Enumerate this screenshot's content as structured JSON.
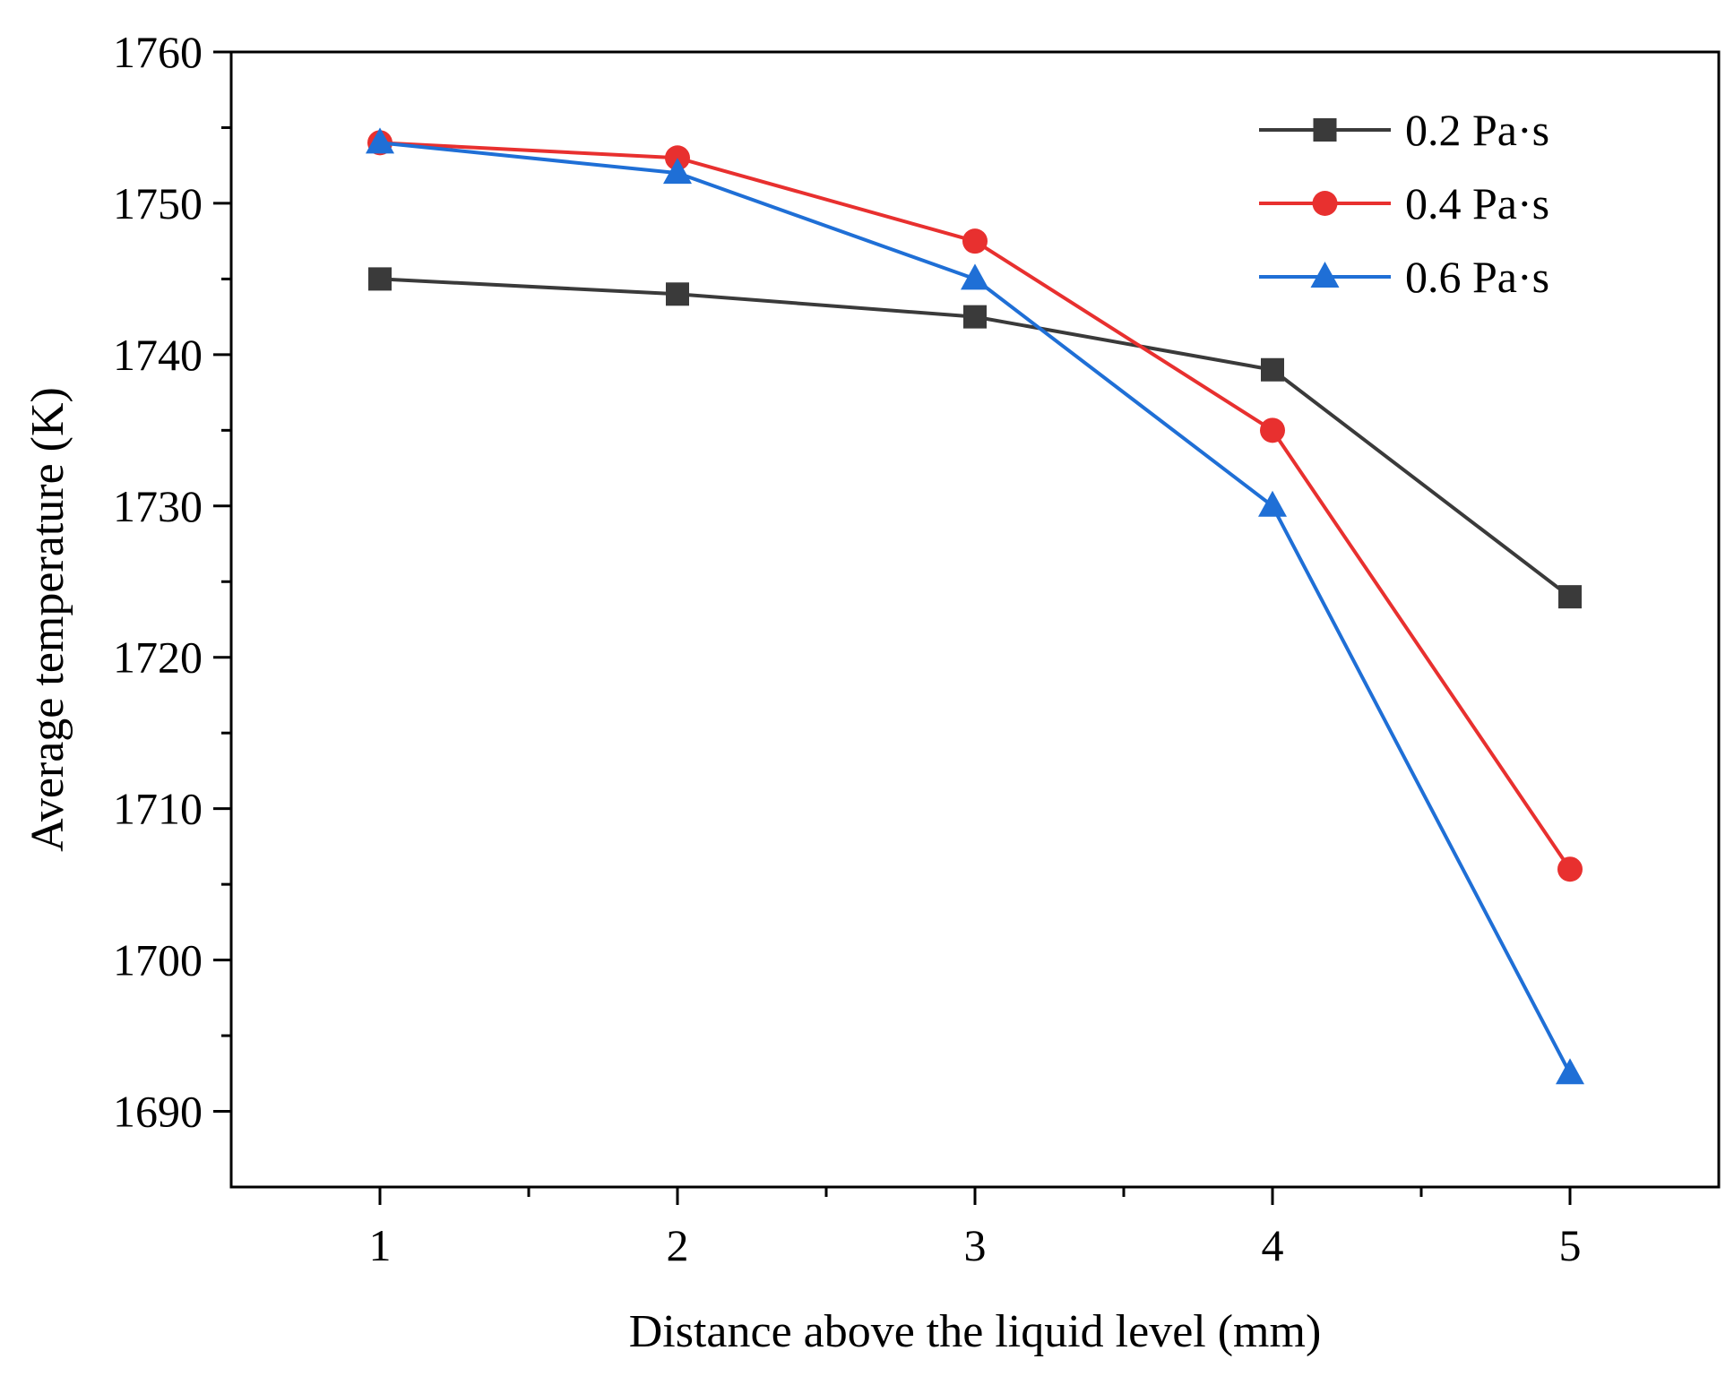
{
  "chart_data": {
    "type": "line",
    "title": "",
    "xlabel": "Distance above the liquid level (mm)",
    "ylabel": "Average temperature (K)",
    "x": [
      1,
      2,
      3,
      4,
      5
    ],
    "xlim": [
      0.5,
      5.5
    ],
    "ylim": [
      1685,
      1760
    ],
    "x_major_ticks": [
      1,
      2,
      3,
      4,
      5
    ],
    "x_minor_ticks": [
      1.5,
      2.5,
      3.5,
      4.5
    ],
    "y_major_ticks": [
      1690,
      1700,
      1710,
      1720,
      1730,
      1740,
      1750,
      1760
    ],
    "y_minor_ticks": [
      1695,
      1705,
      1715,
      1725,
      1735,
      1745,
      1755
    ],
    "grid": false,
    "legend_position": "top-right",
    "series": [
      {
        "name": "0.2 Pa·s",
        "color": "#3a3a3a",
        "marker": "square",
        "values": [
          1745,
          1744,
          1742.5,
          1739,
          1724
        ]
      },
      {
        "name": "0.4 Pa·s",
        "color": "#e8302f",
        "marker": "circle",
        "values": [
          1754,
          1753,
          1747.5,
          1735,
          1706
        ]
      },
      {
        "name": "0.6 Pa·s",
        "color": "#1f6fd6",
        "marker": "triangle",
        "values": [
          1754,
          1752,
          1745,
          1730,
          1692.5
        ]
      }
    ]
  }
}
